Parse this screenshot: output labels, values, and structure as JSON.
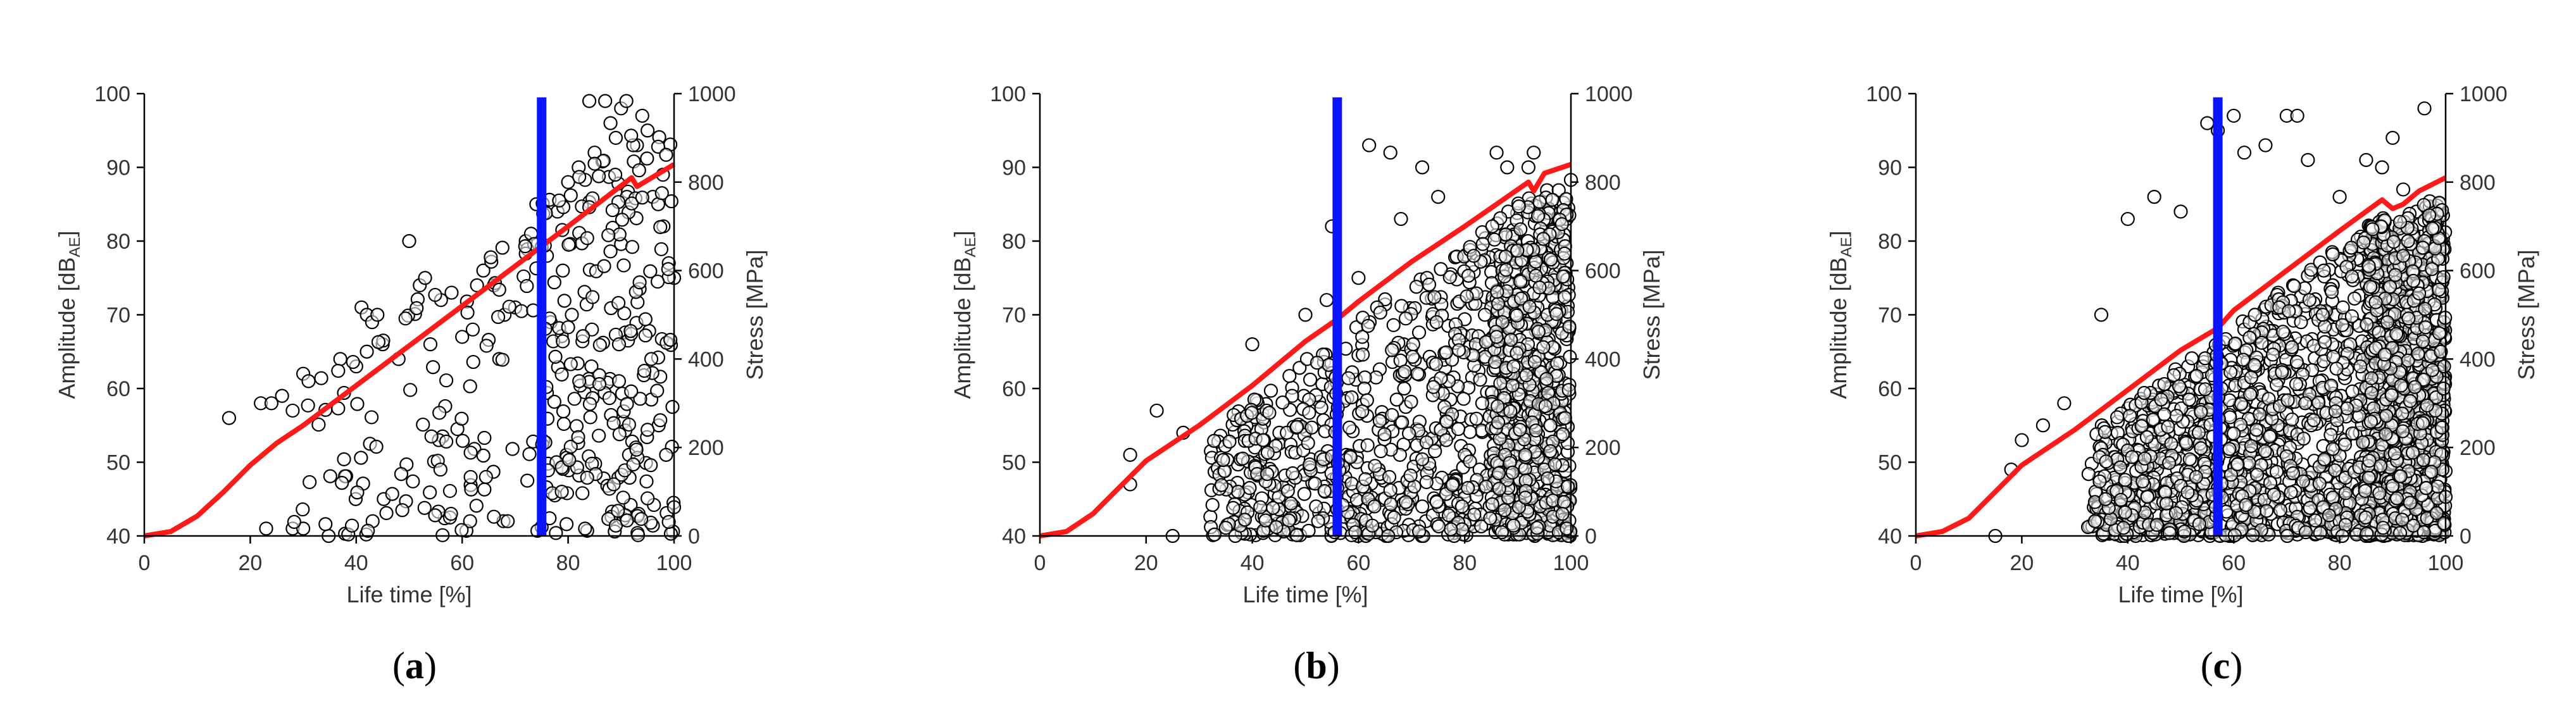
{
  "colors": {
    "stress": "#ff1a1a",
    "marker_line": "#0a14ff",
    "points": "#000000",
    "axis": "#000000"
  },
  "captions": [
    {
      "open": "(",
      "letter": "a",
      "close": ")"
    },
    {
      "open": "(",
      "letter": "b",
      "close": ")"
    },
    {
      "open": "(",
      "letter": "c",
      "close": ")"
    }
  ],
  "chart_data": [
    {
      "type": "scatter",
      "panel": "a",
      "xlabel": "Life time [%]",
      "ylabel_main": "Amplitude [dB",
      "ylabel_sub": "AE",
      "ylabel_end": "]",
      "y2label": "Stress [MPa]",
      "xlim": [
        0,
        100
      ],
      "ylim": [
        40,
        100
      ],
      "y2lim": [
        0,
        1000
      ],
      "xticks": [
        0,
        20,
        40,
        60,
        80,
        100
      ],
      "yticks": [
        40,
        50,
        60,
        70,
        80,
        90,
        100
      ],
      "y2ticks": [
        0,
        200,
        400,
        600,
        800,
        1000
      ],
      "grid": false,
      "vline_x": 75,
      "point_count": 360,
      "point_seed": 11,
      "stress_curve": [
        [
          0,
          0
        ],
        [
          5,
          10
        ],
        [
          10,
          45
        ],
        [
          15,
          100
        ],
        [
          20,
          160
        ],
        [
          25,
          210
        ],
        [
          30,
          250
        ],
        [
          40,
          340
        ],
        [
          50,
          430
        ],
        [
          60,
          520
        ],
        [
          70,
          610
        ],
        [
          80,
          700
        ],
        [
          92,
          810
        ],
        [
          93,
          790
        ],
        [
          100,
          840
        ]
      ],
      "points": [
        [
          16,
          56
        ],
        [
          22,
          58
        ],
        [
          24,
          58
        ],
        [
          26,
          59
        ],
        [
          28,
          57
        ],
        [
          30,
          62
        ],
        [
          31,
          61
        ],
        [
          37,
          64
        ],
        [
          40,
          63
        ],
        [
          41,
          71
        ],
        [
          42,
          70
        ],
        [
          43,
          69
        ],
        [
          44,
          70
        ],
        [
          42,
          65
        ],
        [
          45,
          66
        ],
        [
          48,
          64
        ],
        [
          50,
          80
        ],
        [
          52,
          74
        ],
        [
          53,
          75
        ],
        [
          54,
          66
        ],
        [
          56,
          72
        ],
        [
          58,
          73
        ],
        [
          60,
          67
        ],
        [
          62,
          68
        ],
        [
          64,
          76
        ],
        [
          66,
          74
        ],
        [
          68,
          70
        ],
        [
          70,
          71
        ],
        [
          72,
          80
        ],
        [
          73,
          81
        ],
        [
          74,
          85
        ],
        [
          76,
          78
        ],
        [
          78,
          84
        ],
        [
          79,
          76
        ],
        [
          80,
          88
        ],
        [
          82,
          90
        ],
        [
          84,
          99
        ],
        [
          85,
          92
        ],
        [
          87,
          99
        ],
        [
          88,
          96
        ],
        [
          89,
          94
        ],
        [
          90,
          98
        ],
        [
          91,
          99
        ],
        [
          93,
          93
        ],
        [
          94,
          97
        ],
        [
          95,
          95
        ],
        [
          96,
          86
        ],
        [
          97,
          85
        ],
        [
          98,
          82
        ],
        [
          99,
          77
        ],
        [
          100,
          75
        ],
        [
          23,
          41
        ],
        [
          28,
          41
        ],
        [
          30,
          41
        ]
      ]
    },
    {
      "type": "scatter",
      "panel": "b",
      "xlabel": "Life time [%]",
      "ylabel_main": "Amplitude [dB",
      "ylabel_sub": "AE",
      "ylabel_end": "]",
      "y2label": "Stress [MPa]",
      "xlim": [
        0,
        100
      ],
      "ylim": [
        40,
        100
      ],
      "y2lim": [
        0,
        1000
      ],
      "xticks": [
        0,
        20,
        40,
        60,
        80,
        100
      ],
      "yticks": [
        40,
        50,
        60,
        70,
        80,
        90,
        100
      ],
      "y2ticks": [
        0,
        200,
        400,
        600,
        800,
        1000
      ],
      "grid": false,
      "vline_x": 56,
      "point_count": 1300,
      "point_seed": 23,
      "stress_curve": [
        [
          0,
          0
        ],
        [
          5,
          10
        ],
        [
          10,
          50
        ],
        [
          15,
          110
        ],
        [
          20,
          170
        ],
        [
          30,
          250
        ],
        [
          40,
          340
        ],
        [
          50,
          440
        ],
        [
          56,
          490
        ],
        [
          60,
          530
        ],
        [
          70,
          620
        ],
        [
          80,
          700
        ],
        [
          92,
          800
        ],
        [
          93,
          780
        ],
        [
          95,
          820
        ],
        [
          100,
          840
        ]
      ],
      "points": [
        [
          17,
          51
        ],
        [
          17,
          47
        ],
        [
          22,
          57
        ],
        [
          25,
          40
        ],
        [
          27,
          54
        ],
        [
          40,
          66
        ],
        [
          50,
          70
        ],
        [
          54,
          72
        ],
        [
          55,
          82
        ],
        [
          60,
          75
        ],
        [
          62,
          93
        ],
        [
          66,
          92
        ],
        [
          68,
          83
        ],
        [
          72,
          90
        ],
        [
          75,
          86
        ],
        [
          86,
          92
        ],
        [
          88,
          90
        ],
        [
          92,
          90
        ],
        [
          93,
          92
        ]
      ]
    },
    {
      "type": "scatter",
      "panel": "c",
      "xlabel": "Life time [%]",
      "ylabel_main": "Amplitude [dB",
      "ylabel_sub": "AE",
      "ylabel_end": "]",
      "y2label": "Stress [MPa]",
      "xlim": [
        0,
        100
      ],
      "ylim": [
        40,
        100
      ],
      "y2lim": [
        0,
        1000
      ],
      "xticks": [
        0,
        20,
        40,
        60,
        80,
        100
      ],
      "yticks": [
        40,
        50,
        60,
        70,
        80,
        90,
        100
      ],
      "y2ticks": [
        0,
        200,
        400,
        600,
        800,
        1000
      ],
      "grid": false,
      "vline_x": 57,
      "point_count": 2300,
      "point_seed": 37,
      "stress_curve": [
        [
          0,
          0
        ],
        [
          5,
          10
        ],
        [
          10,
          40
        ],
        [
          15,
          100
        ],
        [
          20,
          160
        ],
        [
          30,
          240
        ],
        [
          40,
          330
        ],
        [
          50,
          420
        ],
        [
          57,
          470
        ],
        [
          60,
          510
        ],
        [
          70,
          600
        ],
        [
          80,
          690
        ],
        [
          88,
          760
        ],
        [
          90,
          740
        ],
        [
          92,
          750
        ],
        [
          95,
          780
        ],
        [
          100,
          810
        ]
      ],
      "points": [
        [
          15,
          40
        ],
        [
          18,
          49
        ],
        [
          20,
          53
        ],
        [
          24,
          55
        ],
        [
          28,
          58
        ],
        [
          35,
          70
        ],
        [
          40,
          83
        ],
        [
          45,
          86
        ],
        [
          50,
          84
        ],
        [
          55,
          96
        ],
        [
          57,
          95
        ],
        [
          60,
          97
        ],
        [
          62,
          92
        ],
        [
          66,
          93
        ],
        [
          70,
          97
        ],
        [
          72,
          97
        ],
        [
          74,
          91
        ],
        [
          80,
          86
        ],
        [
          85,
          91
        ],
        [
          88,
          90
        ],
        [
          90,
          94
        ],
        [
          92,
          87
        ],
        [
          96,
          98
        ],
        [
          98,
          82
        ]
      ]
    }
  ]
}
